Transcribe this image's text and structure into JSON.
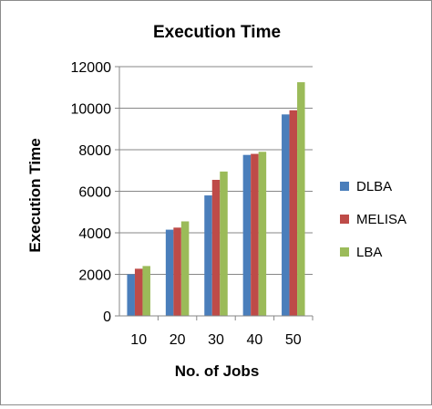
{
  "chart_data": {
    "type": "bar",
    "title": "Execution Time",
    "xlabel": "No. of Jobs",
    "ylabel": "Execution Time",
    "categories": [
      "10",
      "20",
      "30",
      "40",
      "50"
    ],
    "ylim": [
      0,
      12000
    ],
    "yticks": [
      "0",
      "2000",
      "4000",
      "6000",
      "8000",
      "10000",
      "12000"
    ],
    "grid": true,
    "legend_position": "right",
    "series": [
      {
        "name": "DLBA",
        "color": "#4a7ebb",
        "values": [
          2000,
          4150,
          5800,
          7750,
          9700
        ]
      },
      {
        "name": "MELISA",
        "color": "#be4b48",
        "values": [
          2270,
          4250,
          6550,
          7800,
          9900
        ]
      },
      {
        "name": "LBA",
        "color": "#9bbb59",
        "values": [
          2400,
          4550,
          6950,
          7900,
          11250
        ]
      }
    ]
  }
}
